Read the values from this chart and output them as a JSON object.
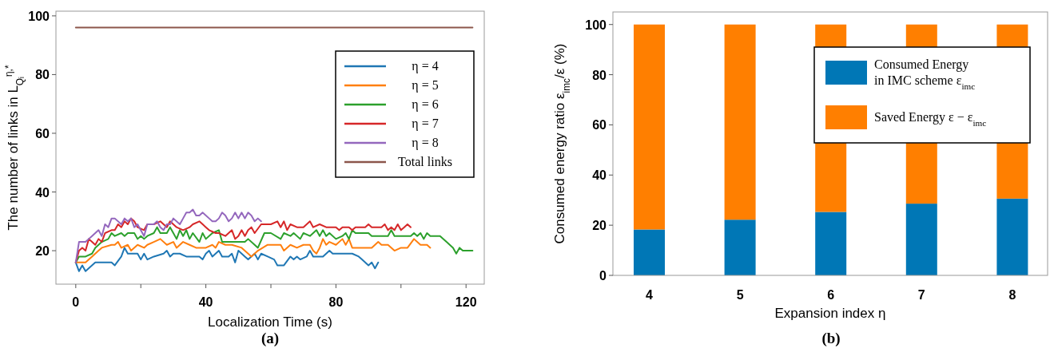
{
  "chart_data": [
    {
      "type": "line",
      "xlabel": "Localization Time (s)",
      "ylabel": "The number of links in L$_{Qᵢ}$$^{η,*}$",
      "annotations": [
        "(a)"
      ],
      "xlim": [
        -6.1,
        125.6
      ],
      "ylim": [
        8.6,
        101.6
      ],
      "xticks": [
        0,
        {
          "value": 20,
          "label": null
        },
        40,
        {
          "value": 60,
          "label": null
        },
        80,
        {
          "value": 100,
          "label": null
        },
        120
      ],
      "yticks": [
        20,
        40,
        60,
        80,
        100
      ],
      "legend": "top right",
      "grid": false,
      "series": [
        {
          "name": "η = 4",
          "color": "#1f77b4",
          "x": [
            0,
            1,
            2,
            3,
            6,
            11,
            12,
            14,
            15,
            16,
            19,
            20,
            21,
            22,
            24,
            27,
            28,
            29,
            30,
            32,
            34,
            38,
            39,
            40,
            41,
            42,
            44,
            45,
            47,
            48,
            49,
            50,
            51,
            52,
            53,
            55,
            56,
            57,
            59,
            61,
            62,
            64,
            66,
            67,
            68,
            69,
            71,
            72,
            73,
            76,
            78,
            79,
            85,
            87,
            88,
            90,
            91,
            92,
            93
          ],
          "values": [
            16,
            13,
            15,
            13,
            16,
            16,
            15,
            18,
            21,
            19,
            19,
            17,
            19,
            17,
            18,
            19,
            20,
            18,
            19,
            19,
            18,
            18,
            17,
            19,
            20,
            18,
            20,
            18,
            18,
            19,
            16,
            20,
            19,
            18,
            17,
            19,
            17,
            19,
            18,
            17,
            15,
            15,
            18,
            17,
            18,
            17,
            18,
            20,
            18,
            18,
            20,
            19,
            19,
            18,
            17,
            15,
            16,
            14,
            16
          ]
        },
        {
          "name": "η = 5",
          "color": "#ff7f0e",
          "x": [
            0,
            3,
            5,
            7,
            8,
            11,
            12,
            13,
            14,
            16,
            17,
            19,
            21,
            22,
            24,
            26,
            28,
            30,
            31,
            33,
            35,
            37,
            40,
            42,
            43,
            44,
            46,
            48,
            51,
            53,
            54,
            56,
            59,
            63,
            64,
            66,
            68,
            70,
            72,
            73,
            74,
            75,
            76,
            77,
            78,
            80,
            82,
            83,
            84,
            85,
            91,
            93,
            94,
            96,
            98,
            100,
            102,
            104,
            106,
            108,
            109
          ],
          "values": [
            16,
            16,
            18,
            20,
            21,
            22,
            22,
            23,
            21,
            22,
            20,
            22,
            21,
            22,
            23,
            24,
            22,
            23,
            21,
            23,
            22,
            21,
            21,
            22,
            21,
            23,
            22,
            22,
            21,
            19,
            18,
            20,
            22,
            22,
            20,
            22,
            21,
            22,
            22,
            20,
            19,
            21,
            24,
            22,
            23,
            22,
            24,
            22,
            24,
            21,
            21,
            23,
            22,
            22,
            20,
            21,
            21,
            24,
            22,
            22,
            21
          ]
        },
        {
          "name": "η = 6",
          "color": "#2ca02c",
          "x": [
            0,
            1,
            3,
            5,
            6,
            8,
            10,
            11,
            12,
            14,
            15,
            16,
            18,
            19,
            20,
            21,
            22,
            24,
            25,
            26,
            28,
            29,
            30,
            31,
            32,
            33,
            34,
            35,
            36,
            38,
            39,
            40,
            42,
            44,
            45,
            47,
            52,
            53,
            55,
            56,
            58,
            60,
            63,
            64,
            66,
            67,
            69,
            70,
            72,
            74,
            75,
            76,
            77,
            78,
            80,
            82,
            83,
            84,
            85,
            86,
            90,
            91,
            96,
            97,
            98,
            103,
            104,
            105,
            106,
            107,
            108,
            109,
            112,
            114,
            116,
            117,
            118,
            119,
            122
          ],
          "values": [
            16,
            18,
            18,
            19,
            21,
            23,
            24,
            26,
            25,
            26,
            25,
            26,
            26,
            24,
            25,
            24,
            25,
            26,
            28,
            26,
            26,
            28,
            26,
            24,
            27,
            25,
            27,
            24,
            26,
            23,
            26,
            24,
            26,
            27,
            23,
            23,
            23,
            24,
            22,
            21,
            26,
            26,
            24,
            26,
            25,
            26,
            24,
            26,
            25,
            27,
            25,
            27,
            25,
            26,
            24,
            25,
            26,
            24,
            27,
            26,
            26,
            25,
            25,
            27,
            25,
            25,
            26,
            25,
            26,
            24,
            26,
            25,
            25,
            23,
            21,
            19,
            21,
            20,
            20
          ]
        },
        {
          "name": "η = 7",
          "color": "#d62728",
          "x": [
            0,
            1,
            2,
            3,
            4,
            5,
            6,
            7,
            8,
            9,
            11,
            12,
            13,
            14,
            15,
            16,
            17,
            18,
            19,
            21,
            22,
            24,
            26,
            27,
            28,
            29,
            31,
            33,
            35,
            36,
            38,
            40,
            41,
            43,
            44,
            46,
            47,
            48,
            49,
            50,
            51,
            52,
            53,
            54,
            55,
            57,
            60,
            62,
            63,
            64,
            65,
            66,
            68,
            70,
            72,
            73,
            75,
            77,
            80,
            81,
            82,
            84,
            85,
            86,
            89,
            90,
            91,
            94,
            95,
            96,
            97,
            98,
            99,
            100,
            101,
            102,
            103
          ],
          "values": [
            16,
            20,
            21,
            20,
            24,
            23,
            22,
            24,
            23,
            26,
            27,
            27,
            29,
            28,
            30,
            29,
            31,
            30,
            28,
            27,
            29,
            29,
            30,
            29,
            28,
            30,
            28,
            27,
            28,
            29,
            30,
            28,
            27,
            26,
            26,
            25,
            26,
            27,
            24,
            25,
            27,
            25,
            27,
            28,
            26,
            29,
            29,
            30,
            28,
            30,
            27,
            29,
            28,
            28,
            30,
            28,
            29,
            28,
            28,
            27,
            28,
            28,
            27,
            28,
            28,
            29,
            28,
            28,
            29,
            27,
            28,
            27,
            29,
            27,
            28,
            29,
            28
          ]
        },
        {
          "name": "η = 8",
          "color": "#9467bd",
          "x": [
            0,
            1,
            3,
            4,
            5,
            7,
            8,
            9,
            10,
            11,
            12,
            14,
            15,
            16,
            17,
            18,
            19,
            21,
            22,
            24,
            25,
            26,
            27,
            28,
            29,
            30,
            32,
            33,
            34,
            35,
            36,
            37,
            38,
            39,
            41,
            42,
            43,
            44,
            45,
            46,
            47,
            48,
            49,
            50,
            51,
            52,
            53,
            54,
            55,
            56,
            57
          ],
          "values": [
            16,
            23,
            23,
            24,
            25,
            27,
            25,
            29,
            28,
            31,
            31,
            29,
            31,
            30,
            31,
            28,
            29,
            25,
            29,
            29,
            30,
            28,
            27,
            29,
            29,
            31,
            29,
            31,
            33,
            33,
            34,
            32,
            32,
            33,
            31,
            30,
            30,
            31,
            33,
            32,
            30,
            31,
            33,
            31,
            33,
            31,
            33,
            32,
            30,
            31,
            30
          ]
        },
        {
          "name": "Total links",
          "color": "#8c564b",
          "x": [
            0,
            122
          ],
          "values": [
            96,
            96
          ]
        }
      ]
    },
    {
      "type": "bar",
      "stacked": true,
      "xlabel": "Expansion index η",
      "ylabel": "Consumed energy ratio ε$_{imc}$/ε  (%)",
      "annotations": [
        "(b)"
      ],
      "categories": [
        "4",
        "5",
        "6",
        "7",
        "8"
      ],
      "ylim": [
        0,
        105
      ],
      "yticks": [
        0,
        20,
        40,
        60,
        80,
        100
      ],
      "legend": "top right",
      "grid": false,
      "series": [
        {
          "name": "Consumed Energy in IMC scheme ε$_{imc}$",
          "color": "#0077b6",
          "values": [
            18.3,
            22.2,
            25.3,
            28.6,
            30.6
          ]
        },
        {
          "name": "Saved Energy  ε − ε$_{imc}$",
          "color": "#ff7f00",
          "values": [
            81.7,
            77.8,
            74.7,
            71.4,
            69.4
          ]
        }
      ]
    }
  ]
}
